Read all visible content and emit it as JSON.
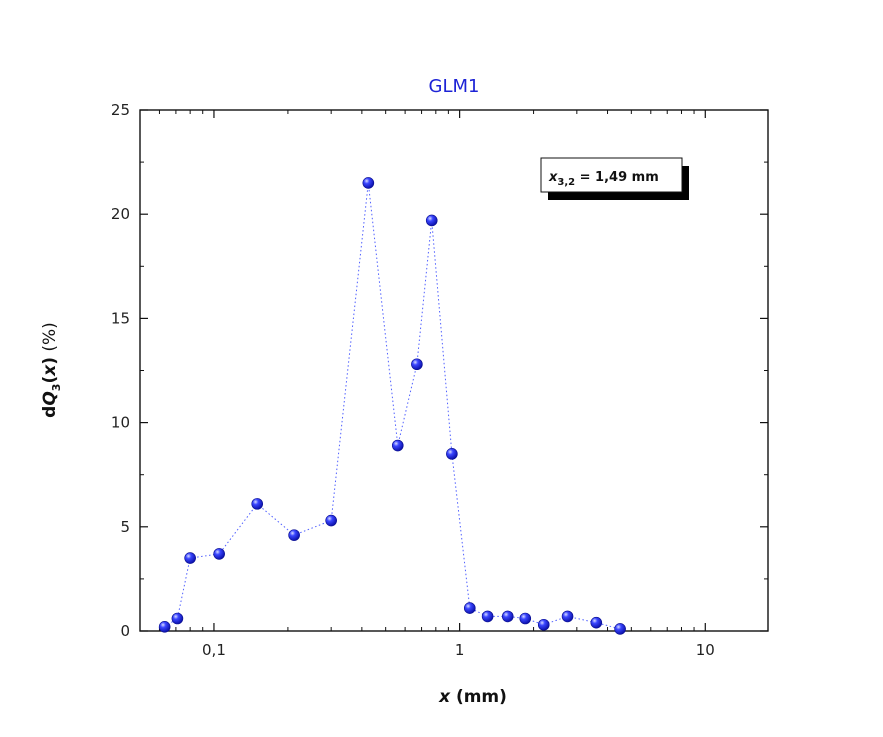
{
  "chart_data": {
    "type": "scatter",
    "title": "GLM1",
    "xlabel": {
      "var": "x",
      "unit": " (mm)"
    },
    "ylabel": {
      "pre": "d",
      "var": "Q",
      "sub": "3",
      "open": "(",
      "var2": "x",
      "close": ")",
      "unit": " (%)"
    },
    "xscale": "log",
    "xlim": [
      0.05,
      18
    ],
    "ylim": [
      0,
      25
    ],
    "xticks": [
      {
        "value": 0.1,
        "label": "0,1"
      },
      {
        "value": 1,
        "label": "1"
      },
      {
        "value": 10,
        "label": "10"
      }
    ],
    "yticks": [
      0,
      5,
      10,
      15,
      20,
      25
    ],
    "series": [
      {
        "marker_color": "#1a1aff",
        "line_style": "dotted",
        "x": [
          0.063,
          0.071,
          0.08,
          0.105,
          0.15,
          0.212,
          0.3,
          0.425,
          0.56,
          0.67,
          0.77,
          0.93,
          1.1,
          1.3,
          1.57,
          1.85,
          2.2,
          2.75,
          3.6,
          4.5
        ],
        "y": [
          0.2,
          0.6,
          3.5,
          3.7,
          6.1,
          4.6,
          5.3,
          21.5,
          8.9,
          12.8,
          19.7,
          8.5,
          1.1,
          0.7,
          0.7,
          0.6,
          0.3,
          0.7,
          0.4,
          0.1
        ]
      }
    ],
    "annotation": {
      "var": "x",
      "sub": "3,2",
      "value": " = 1,49 mm"
    }
  },
  "colors": {
    "title": "#1d23d6",
    "marker": "#1a1aff"
  }
}
